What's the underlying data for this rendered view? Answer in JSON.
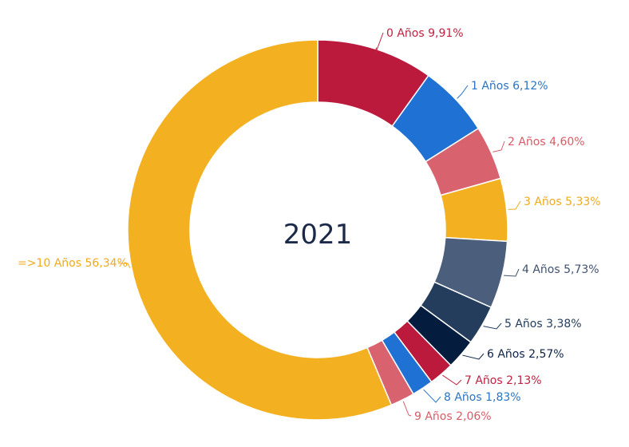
{
  "chart_data": {
    "type": "pie",
    "donut": true,
    "center_text": "2021",
    "legend": "none",
    "slices": [
      {
        "label": "0 Años 9,91%",
        "value": 9.91,
        "color": "#bb1a3c"
      },
      {
        "label": "1 Años 6,12%",
        "value": 6.12,
        "color": "#1f72d4"
      },
      {
        "label": "2 Años 4,60%",
        "value": 4.6,
        "color": "#d8636e"
      },
      {
        "label": "3 Años 5,33%",
        "value": 5.33,
        "color": "#f3b122"
      },
      {
        "label": "4 Años 5,73%",
        "value": 5.73,
        "color": "#4b5f7d"
      },
      {
        "label": "5 Años 3,38%",
        "value": 3.38,
        "color": "#243d5c"
      },
      {
        "label": "6 Años 2,57%",
        "value": 2.57,
        "color": "#041c3e"
      },
      {
        "label": "7 Años 2,13%",
        "value": 2.13,
        "color": "#bb1a3c"
      },
      {
        "label": "8 Años 1,83%",
        "value": 1.83,
        "color": "#1f72d4"
      },
      {
        "label": "9 Años 2,06%",
        "value": 2.06,
        "color": "#d8636e"
      },
      {
        "label": "=>10 Años 56,34%",
        "value": 56.34,
        "color": "#f3b122"
      }
    ]
  },
  "label_colors": [
    "#c0213f",
    "#2a74c2",
    "#d85c67",
    "#f0aa1c",
    "#3f5270",
    "#243d5c",
    "#0c2246",
    "#c0213f",
    "#2a74c2",
    "#d85c67",
    "#f0aa1c"
  ]
}
